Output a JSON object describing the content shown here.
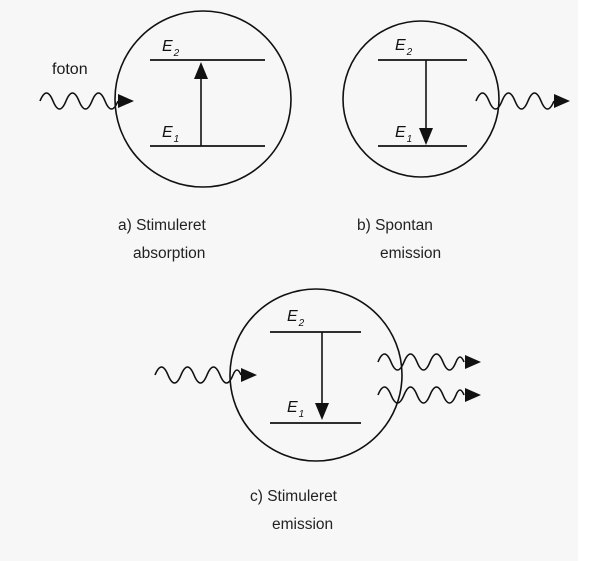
{
  "labels": {
    "photon": "foton",
    "e_symbol": "E",
    "sub_upper": "2",
    "sub_lower": "1"
  },
  "captions": {
    "a_line1": "a) Stimuleret",
    "a_line2": "absorption",
    "b_line1": "b) Spontan",
    "b_line2": "emission",
    "c_line1": "c) Stimuleret",
    "c_line2": "emission"
  },
  "colors": {
    "ink": "#111111",
    "page": "#f7f7f7",
    "margin": "#ffffff"
  }
}
